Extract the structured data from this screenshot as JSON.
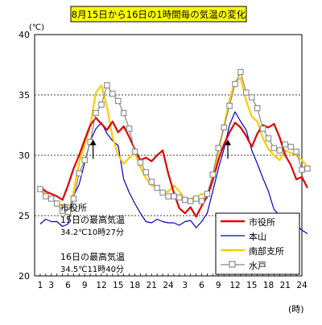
{
  "chart_data": {
    "type": "line",
    "title": "8月15日から16日の1時間毎の気温の変化",
    "y_unit_label": "(℃)",
    "x_unit_label": "(時)",
    "ylim": [
      20,
      40
    ],
    "y_ticks": [
      20,
      25,
      30,
      35,
      40
    ],
    "grid": "dashed at 25, 30, 35",
    "x_tick_labels": [
      "1",
      "3",
      "6",
      "9",
      "12",
      "15",
      "18",
      "21",
      "24",
      "3",
      "6",
      "9",
      "12",
      "15",
      "18",
      "21",
      "24"
    ],
    "x_tick_hours": [
      1,
      3,
      6,
      9,
      12,
      15,
      18,
      21,
      24,
      27,
      30,
      33,
      36,
      39,
      42,
      45,
      48
    ],
    "legend_position": "bottom-right",
    "series": [
      {
        "name": "市役所",
        "color": "#e00000",
        "marker": "none",
        "width": 2.2,
        "values": [
          27.4,
          27.0,
          26.8,
          26.6,
          26.3,
          27.5,
          28.9,
          30.0,
          31.3,
          32.5,
          33.1,
          32.6,
          32.1,
          32.8,
          31.9,
          32.4,
          31.5,
          30.5,
          29.6,
          29.8,
          29.5,
          30.0,
          30.4,
          28.5,
          26.9,
          25.6,
          25.2,
          25.7,
          24.9,
          25.8,
          26.6,
          27.9,
          29.6,
          30.9,
          31.9,
          32.7,
          32.3,
          31.6,
          30.7,
          31.8,
          32.5,
          32.3,
          32.6,
          31.5,
          30.0,
          29.2,
          28.0,
          28.2,
          27.3
        ]
      },
      {
        "name": "本山",
        "color": "#0000cc",
        "marker": "none",
        "width": 1.2,
        "values": [
          24.3,
          24.7,
          24.5,
          24.5,
          24.1,
          24.3,
          26.6,
          27.6,
          29.4,
          31.2,
          32.2,
          32.7,
          31.8,
          31.2,
          30.8,
          28.0,
          26.9,
          26.0,
          25.2,
          24.5,
          24.4,
          24.7,
          24.5,
          24.4,
          24.4,
          24.2,
          24.5,
          24.6,
          24.0,
          24.5,
          25.2,
          27.0,
          28.9,
          30.5,
          32.5,
          33.6,
          32.8,
          32.1,
          30.4,
          29.3,
          28.1,
          27.0,
          25.5,
          25.0,
          24.5,
          24.2,
          24.2,
          23.8,
          23.5
        ]
      },
      {
        "name": "南部支所",
        "color": "#ffcc00",
        "marker": "none",
        "width": 2.2,
        "values": [
          27.1,
          26.8,
          26.4,
          26.1,
          25.8,
          25.0,
          27.0,
          29.4,
          30.9,
          32.5,
          35.2,
          35.8,
          34.0,
          31.5,
          30.0,
          29.3,
          29.8,
          30.2,
          29.0,
          28.1,
          27.5,
          27.3,
          26.9,
          27.0,
          27.5,
          27.0,
          26.3,
          26.4,
          26.5,
          26.8,
          26.7,
          28.0,
          30.3,
          32.4,
          34.6,
          36.1,
          36.4,
          34.5,
          33.2,
          32.8,
          31.4,
          30.5,
          30.0,
          29.6,
          30.4,
          30.2,
          30.0,
          29.6,
          29.0
        ]
      },
      {
        "name": "水戸",
        "color": "#888888",
        "marker": "square",
        "width": 1.2,
        "values": [
          27.2,
          26.6,
          26.4,
          26.0,
          25.4,
          25.3,
          26.4,
          28.5,
          29.6,
          31.1,
          33.5,
          34.2,
          35.8,
          35.1,
          34.5,
          33.5,
          32.2,
          30.3,
          29.4,
          28.6,
          27.8,
          27.3,
          26.9,
          26.6,
          26.6,
          26.5,
          26.3,
          26.2,
          26.4,
          26.2,
          26.8,
          28.4,
          30.6,
          32.3,
          34.1,
          35.9,
          36.9,
          35.2,
          34.8,
          33.9,
          32.2,
          31.4,
          30.6,
          30.4,
          30.9,
          30.7,
          30.3,
          28.8,
          28.9
        ]
      }
    ],
    "annotations": [
      {
        "line1": "市役所",
        "line2": "15日の最高気温",
        "line3": "34.2℃10時27分"
      },
      {
        "line1": "16日の最高気温",
        "line2": "34.5℃11時40分"
      }
    ],
    "arrow_hours": [
      10.5,
      34.7
    ]
  }
}
